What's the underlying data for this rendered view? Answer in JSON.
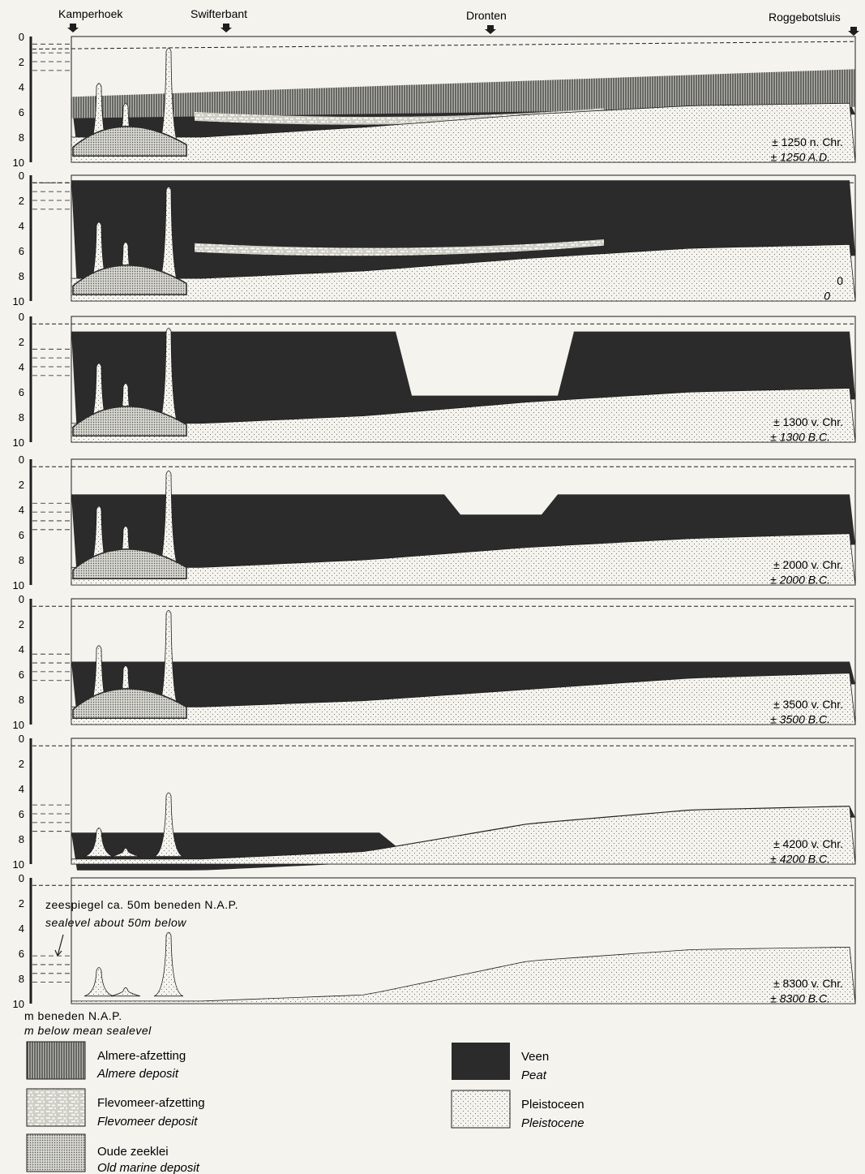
{
  "places": [
    "Kamperhoek",
    "Swifterbant",
    "Dronten",
    "Roggebotsluis"
  ],
  "y_ticks": [
    "0",
    "2",
    "4",
    "6",
    "8",
    "10"
  ],
  "axis_label_nl": "m beneden N.A.P.",
  "axis_label_en": "m below mean sealevel",
  "periods": [
    {
      "label_nl": "± 1250  n. Chr.",
      "label_en": "± 1250  A.D."
    },
    {
      "label_nl": "0",
      "label_en": "0"
    },
    {
      "label_nl": "± 1300  v. Chr.",
      "label_en": "± 1300  B.C."
    },
    {
      "label_nl": "± 2000  v. Chr.",
      "label_en": "± 2000  B.C."
    },
    {
      "label_nl": "± 3500  v. Chr.",
      "label_en": "± 3500  B.C."
    },
    {
      "label_nl": "± 4200  v. Chr.",
      "label_en": "± 4200  B.C."
    },
    {
      "label_nl": "± 8300  v. Chr.",
      "label_en": "± 8300  B.C."
    }
  ],
  "sealevel_note_nl": "zeespiegel  ca. 50m  beneden  N.A.P.",
  "sealevel_note_en": "sealevel  about  50m  below",
  "legend": [
    {
      "key": "almere",
      "label_nl": "Almere-afzetting",
      "label_en": "Almere  deposit"
    },
    {
      "key": "flevomeer",
      "label_nl": "Flevomeer-afzetting",
      "label_en": "Flevomeer  deposit"
    },
    {
      "key": "marine",
      "label_nl": "Oude  zeeklei",
      "label_en": "Old  marine  deposit"
    },
    {
      "key": "peat",
      "label_nl": "Veen",
      "label_en": "Peat"
    },
    {
      "key": "pleistocene",
      "label_nl": "Pleistoceen",
      "label_en": "Pleistocene"
    }
  ],
  "colors": {
    "peat": "#2b2b2b",
    "background": "#f4f3ee",
    "ink": "#1e1e1e"
  }
}
